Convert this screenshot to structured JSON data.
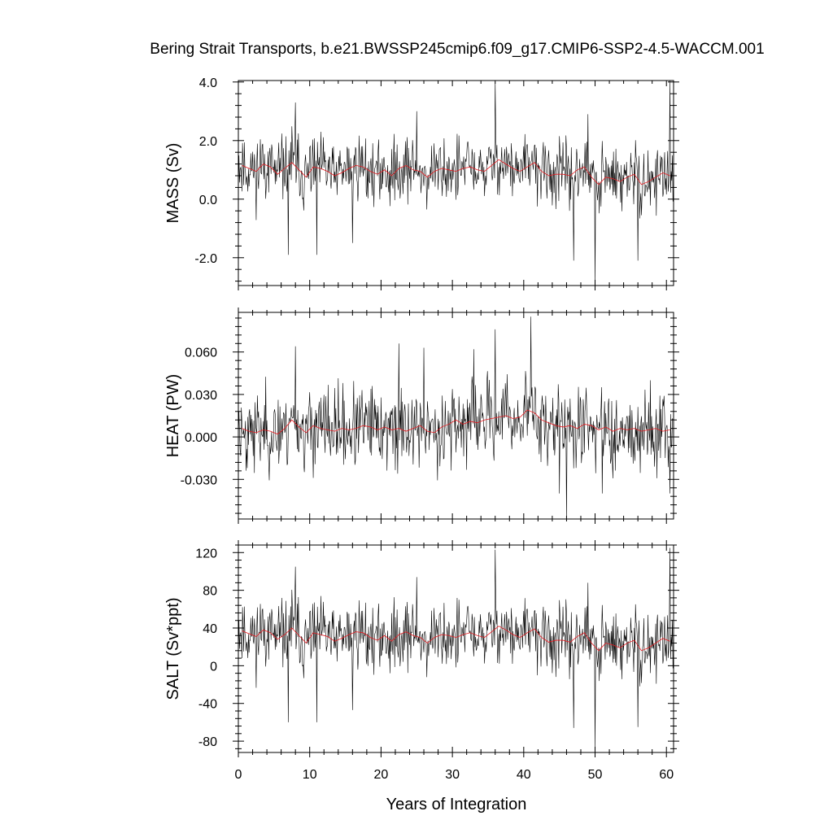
{
  "title": "Bering Strait Transports, b.e21.BWSSP245cmip6.f09_g17.CMIP6-SSP2-4.5-WACCM.001",
  "colors": {
    "monthly": "#000000",
    "annual": "#e8181e",
    "frame": "#000000"
  },
  "chart_data": [
    {
      "type": "line",
      "ylabel": "MASS (Sv)",
      "xlabel": "",
      "xlim": [
        0,
        61
      ],
      "ylim": [
        -2.95,
        4.05
      ],
      "yticks": [
        -2.0,
        0.0,
        2.0,
        4.0
      ],
      "ytick_labels": [
        "-2.0",
        "0.0",
        "2.0",
        "4.0"
      ],
      "xticks": [
        0,
        10,
        20,
        30,
        40,
        50,
        60
      ],
      "xtick_labels": [],
      "series": [
        {
          "values_monthly_seed": 11,
          "mean": 0.95,
          "std": 0.55,
          "values": []
        },
        {
          "values": [
            1.15,
            1.05,
            0.95,
            1.2,
            1.1,
            0.85,
            1.05,
            1.25,
            1.0,
            0.75,
            1.1,
            1.05,
            0.95,
            0.8,
            0.9,
            1.05,
            1.15,
            1.1,
            0.95,
            0.85,
            1.0,
            0.8,
            1.05,
            1.15,
            1.0,
            0.95,
            0.75,
            0.95,
            1.05,
            1.0,
            0.95,
            1.05,
            1.1,
            1.0,
            0.95,
            1.15,
            1.35,
            1.2,
            1.05,
            0.95,
            1.1,
            1.25,
            0.95,
            0.8,
            0.85,
            0.85,
            0.8,
            1.0,
            1.1,
            0.75,
            0.5,
            0.75,
            0.7,
            0.6,
            0.75,
            0.85,
            0.5,
            0.6,
            0.75,
            0.9,
            0.8
          ]
        }
      ],
      "spikes": [
        [
          8,
          3.3
        ],
        [
          36,
          4.0
        ],
        [
          50,
          -2.9
        ],
        [
          60.5,
          4.05
        ],
        [
          7,
          -1.9
        ],
        [
          11,
          -1.9
        ],
        [
          16,
          -1.5
        ],
        [
          47,
          -2.1
        ],
        [
          56,
          -2.1
        ],
        [
          25,
          3.0
        ],
        [
          49,
          2.9
        ]
      ]
    },
    {
      "type": "line",
      "ylabel": "HEAT (PW)",
      "xlabel": "",
      "xlim": [
        0,
        61
      ],
      "ylim": [
        -0.058,
        0.088
      ],
      "yticks": [
        -0.03,
        0.0,
        0.03,
        0.06
      ],
      "ytick_labels": [
        "-0.030",
        "0.000",
        "0.030",
        "0.060"
      ],
      "xticks": [
        0,
        10,
        20,
        30,
        40,
        50,
        60
      ],
      "xtick_labels": [],
      "series": [
        {
          "values_monthly_seed": 23,
          "mean": 0.006,
          "std": 0.014,
          "values": []
        },
        {
          "values": [
            0.006,
            0.004,
            0.003,
            0.005,
            0.004,
            0.002,
            0.006,
            0.012,
            0.007,
            0.003,
            0.008,
            0.006,
            0.005,
            0.004,
            0.006,
            0.005,
            0.006,
            0.008,
            0.007,
            0.005,
            0.007,
            0.005,
            0.006,
            0.004,
            0.006,
            0.008,
            0.004,
            0.003,
            0.007,
            0.009,
            0.012,
            0.009,
            0.011,
            0.01,
            0.012,
            0.013,
            0.014,
            0.015,
            0.013,
            0.014,
            0.019,
            0.017,
            0.012,
            0.01,
            0.008,
            0.007,
            0.008,
            0.006,
            0.009,
            0.008,
            0.005,
            0.007,
            0.004,
            0.006,
            0.005,
            0.006,
            0.004,
            0.005,
            0.006,
            0.004,
            0.005
          ]
        }
      ],
      "spikes": [
        [
          8,
          0.064
        ],
        [
          36,
          0.076
        ],
        [
          41,
          0.085
        ],
        [
          46,
          -0.058
        ],
        [
          45,
          -0.04
        ],
        [
          22.5,
          0.066
        ],
        [
          51,
          -0.04
        ],
        [
          60.5,
          -0.04
        ],
        [
          26,
          0.063
        ],
        [
          33,
          0.062
        ]
      ]
    },
    {
      "type": "line",
      "ylabel": "SALT (Sv*ppt)",
      "xlabel": "Years of Integration",
      "xlim": [
        0,
        61
      ],
      "ylim": [
        -92,
        128
      ],
      "yticks": [
        -80,
        -40,
        0,
        40,
        80,
        120
      ],
      "ytick_labels": [
        "-80",
        "-40",
        "0",
        "40",
        "80",
        "120"
      ],
      "xticks": [
        0,
        10,
        20,
        30,
        40,
        50,
        60
      ],
      "xtick_labels": [
        "0",
        "10",
        "20",
        "30",
        "40",
        "50",
        "60"
      ],
      "series": [
        {
          "values_monthly_seed": 11,
          "mean": 31,
          "std": 18,
          "values": []
        },
        {
          "values": [
            37,
            34,
            31,
            38,
            35,
            28,
            33,
            40,
            32,
            24,
            35,
            33,
            31,
            26,
            29,
            33,
            36,
            35,
            30,
            27,
            32,
            26,
            33,
            36,
            32,
            30,
            24,
            30,
            33,
            32,
            30,
            33,
            35,
            32,
            30,
            36,
            42,
            38,
            33,
            30,
            35,
            39,
            30,
            25,
            27,
            27,
            25,
            31,
            35,
            24,
            16,
            24,
            22,
            19,
            24,
            27,
            16,
            19,
            24,
            29,
            26
          ]
        }
      ],
      "spikes": [
        [
          8,
          105
        ],
        [
          36,
          123
        ],
        [
          50,
          -90
        ],
        [
          60.5,
          125
        ],
        [
          7,
          -60
        ],
        [
          11,
          -60
        ],
        [
          16,
          -47
        ],
        [
          47,
          -66
        ],
        [
          56,
          -65
        ],
        [
          25,
          94
        ],
        [
          49,
          88
        ]
      ]
    }
  ]
}
